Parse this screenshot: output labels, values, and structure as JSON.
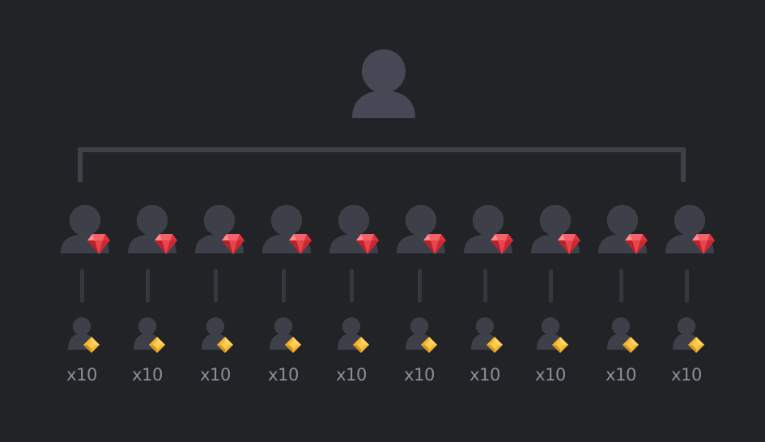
{
  "diagram": {
    "root": {
      "icon": "user-icon"
    },
    "children": [
      {
        "badge_icon": "ruby-icon",
        "sub_icon": "user-icon",
        "sub_badge_icon": "diamond-icon",
        "count_label": "x10"
      },
      {
        "badge_icon": "ruby-icon",
        "sub_icon": "user-icon",
        "sub_badge_icon": "diamond-icon",
        "count_label": "x10"
      },
      {
        "badge_icon": "ruby-icon",
        "sub_icon": "user-icon",
        "sub_badge_icon": "diamond-icon",
        "count_label": "x10"
      },
      {
        "badge_icon": "ruby-icon",
        "sub_icon": "user-icon",
        "sub_badge_icon": "diamond-icon",
        "count_label": "x10"
      },
      {
        "badge_icon": "ruby-icon",
        "sub_icon": "user-icon",
        "sub_badge_icon": "diamond-icon",
        "count_label": "x10"
      },
      {
        "badge_icon": "ruby-icon",
        "sub_icon": "user-icon",
        "sub_badge_icon": "diamond-icon",
        "count_label": "x10"
      },
      {
        "badge_icon": "ruby-icon",
        "sub_icon": "user-icon",
        "sub_badge_icon": "diamond-icon",
        "count_label": "x10"
      },
      {
        "badge_icon": "ruby-icon",
        "sub_icon": "user-icon",
        "sub_badge_icon": "diamond-icon",
        "count_label": "x10"
      },
      {
        "badge_icon": "ruby-icon",
        "sub_icon": "user-icon",
        "sub_badge_icon": "diamond-icon",
        "count_label": "x10"
      },
      {
        "badge_icon": "ruby-icon",
        "sub_icon": "user-icon",
        "sub_badge_icon": "diamond-icon",
        "count_label": "x10"
      }
    ]
  },
  "colors": {
    "background": "#222326",
    "user_fill_root": "#464955",
    "user_fill": "#3e4049",
    "connector": "#3f4149",
    "ruby": "#e0323c",
    "diamond": "#f5b82e",
    "label": "#8b8e98"
  }
}
